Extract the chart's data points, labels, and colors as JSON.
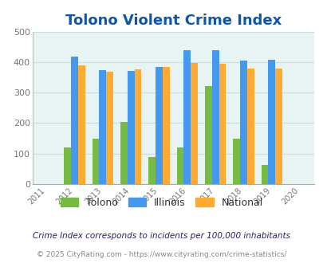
{
  "title": "Tolono Violent Crime Index",
  "years": [
    2011,
    2012,
    2013,
    2014,
    2015,
    2016,
    2017,
    2018,
    2019,
    2020
  ],
  "bar_years": [
    2012,
    2013,
    2014,
    2015,
    2016,
    2017,
    2018,
    2019
  ],
  "tolono": [
    120,
    148,
    204,
    90,
    120,
    322,
    148,
    62
  ],
  "illinois": [
    417,
    373,
    370,
    384,
    438,
    440,
    406,
    408
  ],
  "national": [
    388,
    368,
    376,
    383,
    398,
    394,
    380,
    379
  ],
  "tolono_color": "#77bb44",
  "illinois_color": "#4499ee",
  "national_color": "#ffaa33",
  "plot_bg": "#e8f4f4",
  "ylim": [
    0,
    500
  ],
  "yticks": [
    0,
    100,
    200,
    300,
    400,
    500
  ],
  "title_color": "#1155aa",
  "title_fontsize": 13,
  "legend_labels": [
    "Tolono",
    "Illinois",
    "National"
  ],
  "footnote1": "Crime Index corresponds to incidents per 100,000 inhabitants",
  "footnote2": "© 2025 CityRating.com - https://www.cityrating.com/crime-statistics/",
  "bar_width": 0.25,
  "grid_color": "#ccdddd"
}
